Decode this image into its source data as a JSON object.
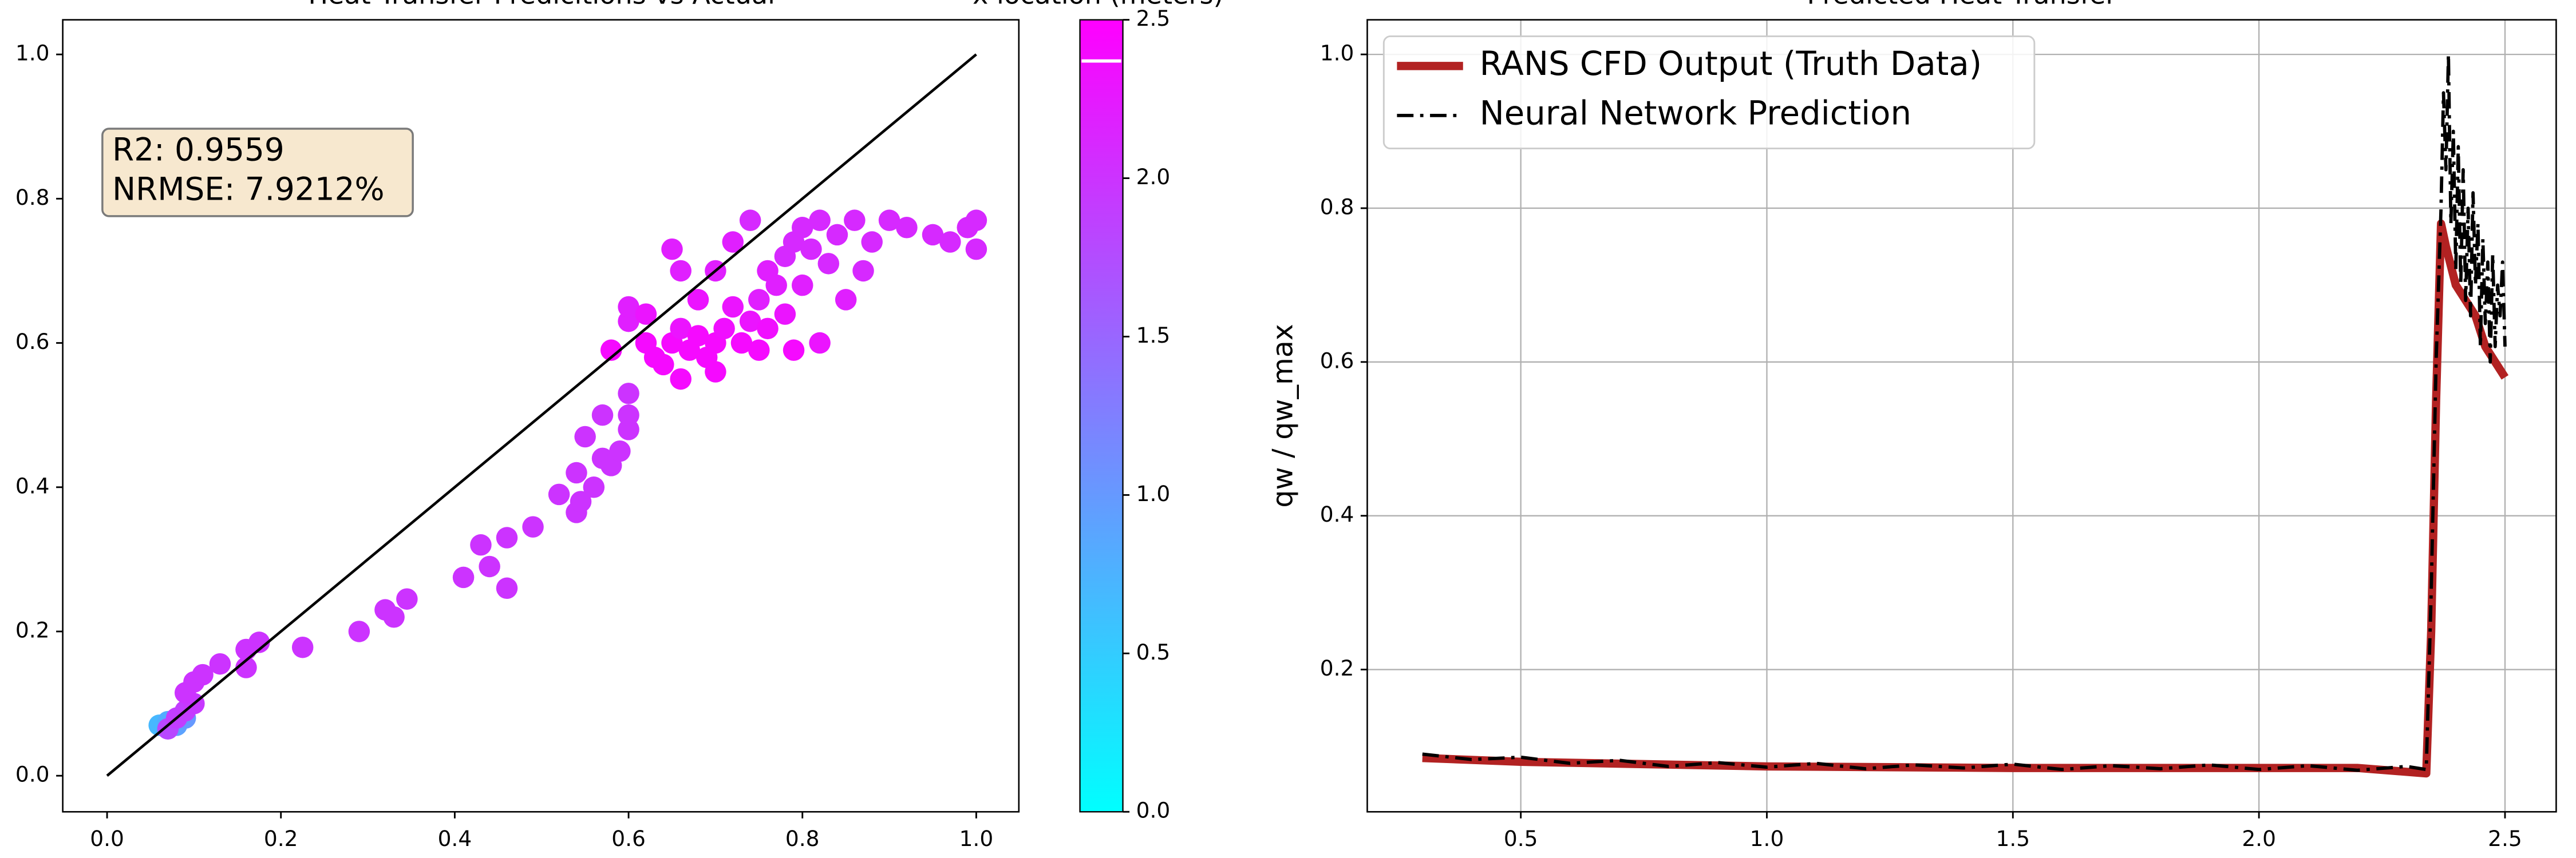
{
  "chart_data": [
    {
      "type": "scatter",
      "title": "Heat Transfer Predicitions vs Actual",
      "xlim": [
        -0.051,
        1.049
      ],
      "ylim": [
        -0.05,
        1.048
      ],
      "xticks": [
        {
          "value": 0,
          "label": "0.0"
        },
        {
          "value": 0.2,
          "label": "0.2"
        },
        {
          "value": 0.4,
          "label": "0.4"
        },
        {
          "value": 0.6,
          "label": "0.6"
        },
        {
          "value": 0.8,
          "label": "0.8"
        },
        {
          "value": 1,
          "label": "1.0"
        }
      ],
      "yticks": [
        {
          "value": 0,
          "label": "0.0"
        },
        {
          "value": 0.2,
          "label": "0.2"
        },
        {
          "value": 0.4,
          "label": "0.4"
        },
        {
          "value": 0.6,
          "label": "0.6"
        },
        {
          "value": 0.8,
          "label": "0.8"
        },
        {
          "value": 1,
          "label": "1.0"
        }
      ],
      "reference_line": {
        "x": [
          0,
          1
        ],
        "y": [
          0,
          1
        ],
        "color": "#000000"
      },
      "annotation": [
        "R2: 0.9559",
        "NRMSE: 7.9212%"
      ],
      "colorbar": {
        "label": "x location (meters)",
        "cmap": "cool",
        "clim": [
          0,
          2.5
        ],
        "marker": 2.37,
        "ticks": [
          {
            "value": 0,
            "label": "0.0"
          },
          {
            "value": 0.5,
            "label": "0.5"
          },
          {
            "value": 1,
            "label": "1.0"
          },
          {
            "value": 1.5,
            "label": "1.5"
          },
          {
            "value": 2,
            "label": "2.0"
          },
          {
            "value": 2.5,
            "label": "2.5"
          }
        ]
      },
      "x": [
        0.06,
        0.07,
        0.08,
        0.09,
        0.07,
        0.08,
        0.09,
        0.1,
        0.09,
        0.1,
        0.11,
        0.13,
        0.16,
        0.16,
        0.175,
        0.225,
        0.29,
        0.32,
        0.33,
        0.345,
        0.41,
        0.43,
        0.44,
        0.46,
        0.46,
        0.49,
        0.52,
        0.54,
        0.54,
        0.545,
        0.56,
        0.57,
        0.58,
        0.59,
        0.6,
        0.6,
        0.6,
        0.57,
        0.55,
        0.58,
        0.6,
        0.6,
        0.62,
        0.63,
        0.64,
        0.65,
        0.66,
        0.67,
        0.68,
        0.69,
        0.7,
        0.71,
        0.72,
        0.73,
        0.74,
        0.75,
        0.76,
        0.77,
        0.78,
        0.79,
        0.8,
        0.82,
        0.84,
        0.86,
        0.88,
        0.9,
        0.92,
        0.95,
        0.97,
        0.99,
        1.0,
        1.0,
        0.74,
        0.72,
        0.68,
        0.66,
        0.65,
        0.7,
        0.66,
        0.62,
        0.75,
        0.78,
        0.8,
        0.83,
        0.85,
        0.82,
        0.79,
        0.87,
        0.76,
        0.7,
        0.81
      ],
      "y": [
        0.07,
        0.075,
        0.07,
        0.08,
        0.065,
        0.08,
        0.09,
        0.1,
        0.115,
        0.13,
        0.14,
        0.155,
        0.15,
        0.175,
        0.185,
        0.178,
        0.2,
        0.23,
        0.22,
        0.245,
        0.275,
        0.32,
        0.29,
        0.33,
        0.26,
        0.345,
        0.39,
        0.365,
        0.42,
        0.38,
        0.4,
        0.44,
        0.43,
        0.45,
        0.48,
        0.5,
        0.53,
        0.5,
        0.47,
        0.59,
        0.63,
        0.65,
        0.6,
        0.58,
        0.57,
        0.6,
        0.62,
        0.59,
        0.61,
        0.58,
        0.6,
        0.62,
        0.65,
        0.6,
        0.63,
        0.66,
        0.7,
        0.68,
        0.72,
        0.74,
        0.76,
        0.77,
        0.75,
        0.77,
        0.74,
        0.77,
        0.76,
        0.75,
        0.74,
        0.76,
        0.73,
        0.77,
        0.77,
        0.74,
        0.66,
        0.7,
        0.73,
        0.56,
        0.55,
        0.64,
        0.59,
        0.64,
        0.68,
        0.71,
        0.66,
        0.6,
        0.59,
        0.7,
        0.62,
        0.7,
        0.73
      ],
      "c": [
        0.7,
        0.8,
        0.9,
        1.0,
        1.8,
        1.9,
        1.9,
        1.95,
        2.0,
        2.0,
        2.0,
        2.0,
        2.0,
        2.0,
        2.0,
        2.0,
        2.0,
        2.0,
        2.0,
        2.0,
        2.0,
        2.0,
        2.0,
        2.0,
        2.0,
        2.0,
        2.0,
        2.0,
        2.0,
        2.0,
        2.0,
        2.0,
        2.0,
        2.0,
        2.0,
        2.0,
        2.0,
        2.0,
        2.0,
        2.4,
        2.2,
        2.2,
        2.4,
        2.4,
        2.4,
        2.4,
        2.3,
        2.4,
        2.4,
        2.4,
        2.4,
        2.35,
        2.3,
        2.4,
        2.3,
        2.2,
        2.2,
        2.2,
        2.1,
        2.1,
        2.1,
        2.1,
        2.1,
        2.1,
        2.1,
        2.1,
        2.1,
        2.1,
        2.1,
        2.1,
        2.1,
        2.1,
        2.1,
        2.2,
        2.3,
        2.2,
        2.2,
        2.4,
        2.4,
        2.3,
        2.4,
        2.3,
        2.2,
        2.1,
        2.2,
        2.3,
        2.4,
        2.1,
        2.35,
        2.2,
        2.1
      ]
    },
    {
      "type": "line",
      "title": "Predicted Heat Transfer",
      "ylabel": "qw / qw_max",
      "xlim": [
        0.188,
        2.604
      ],
      "ylim": [
        0.015,
        1.045
      ],
      "grid": true,
      "legend": "upper left",
      "xticks": [
        0.5,
        {
          "value": 1,
          "label": "1.0"
        },
        1.5,
        {
          "value": 2,
          "label": "2.0"
        },
        2.5
      ],
      "yticks": [
        0.2,
        0.4,
        0.6,
        0.8,
        {
          "value": 1,
          "label": "1.0"
        }
      ],
      "series": [
        {
          "name": "RANS CFD Output (Truth Data)",
          "color": "#b22222",
          "style": "solid",
          "x": [
            0.3,
            0.5,
            0.75,
            1.0,
            1.25,
            1.5,
            1.75,
            2.0,
            2.2,
            2.34,
            2.35,
            2.36,
            2.37,
            2.38,
            2.4,
            2.42,
            2.44,
            2.46,
            2.48,
            2.5
          ],
          "values": [
            0.085,
            0.08,
            0.077,
            0.074,
            0.073,
            0.072,
            0.072,
            0.072,
            0.072,
            0.065,
            0.25,
            0.55,
            0.78,
            0.75,
            0.7,
            0.68,
            0.66,
            0.62,
            0.6,
            0.58
          ]
        },
        {
          "name": "Neural Network Prediction",
          "color": "#000000",
          "style": "dashdot",
          "x": [
            0.3,
            0.4,
            0.5,
            0.6,
            0.7,
            0.8,
            0.9,
            1.0,
            1.1,
            1.2,
            1.3,
            1.4,
            1.5,
            1.6,
            1.7,
            1.8,
            1.9,
            2.0,
            2.1,
            2.2,
            2.3,
            2.34,
            2.35,
            2.36,
            2.37,
            2.375,
            2.38,
            2.385,
            2.39,
            2.395,
            2.4,
            2.405,
            2.41,
            2.415,
            2.42,
            2.425,
            2.43,
            2.435,
            2.44,
            2.445,
            2.45,
            2.455,
            2.46,
            2.465,
            2.47,
            2.475,
            2.48,
            2.485,
            2.49,
            2.495,
            2.5
          ],
          "values": [
            0.09,
            0.083,
            0.086,
            0.078,
            0.082,
            0.074,
            0.079,
            0.073,
            0.078,
            0.071,
            0.076,
            0.072,
            0.077,
            0.07,
            0.075,
            0.071,
            0.076,
            0.07,
            0.075,
            0.069,
            0.074,
            0.07,
            0.3,
            0.6,
            0.8,
            0.95,
            0.85,
            1.0,
            0.78,
            0.9,
            0.72,
            0.88,
            0.7,
            0.85,
            0.68,
            0.8,
            0.66,
            0.82,
            0.7,
            0.78,
            0.62,
            0.76,
            0.65,
            0.73,
            0.6,
            0.74,
            0.62,
            0.7,
            0.66,
            0.73,
            0.62
          ]
        }
      ]
    }
  ]
}
